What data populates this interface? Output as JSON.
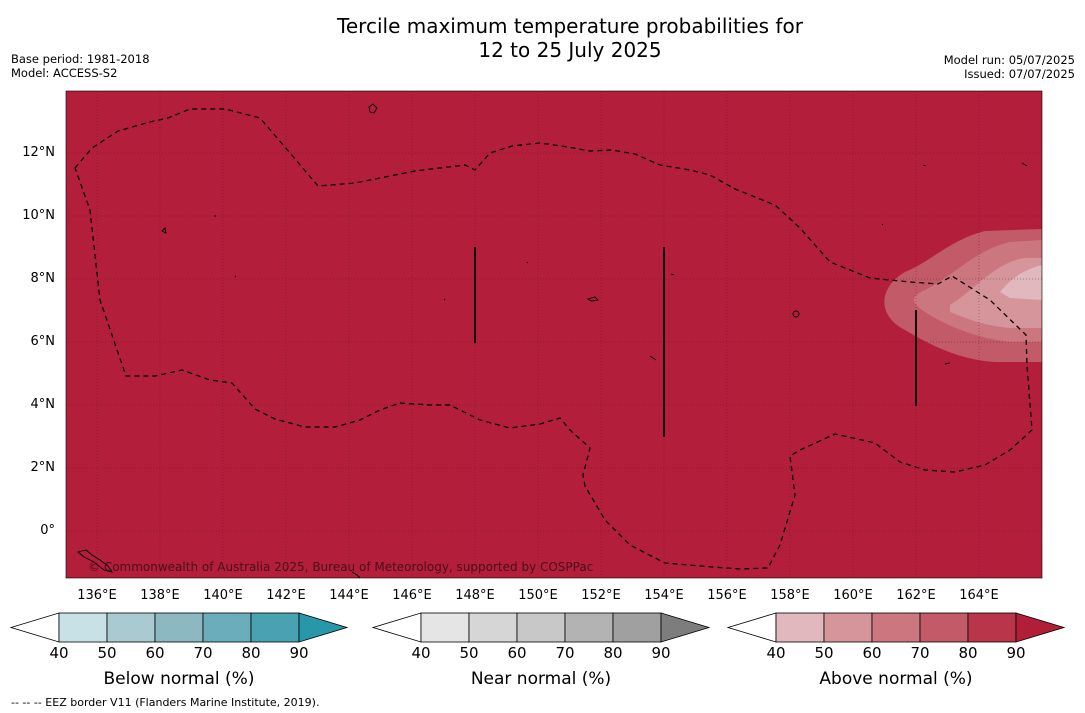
{
  "header": {
    "title_line1": "Tercile maximum temperature probabilities for",
    "title_line2": "12 to 25 July 2025",
    "base_period": "Base period: 1981-2018",
    "model": "Model: ACCESS-S2",
    "model_run": "Model run: 05/07/2025",
    "issued": "Issued: 07/07/2025"
  },
  "map": {
    "copyright": "© Commonwealth of Australia 2025, Bureau of Meteorology, supported by COSPPac",
    "base_color": "#b31f3b",
    "lat_labels": [
      "12°N",
      "10°N",
      "8°N",
      "6°N",
      "4°N",
      "2°N",
      "0°"
    ],
    "lon_labels": [
      "136°E",
      "138°E",
      "140°E",
      "142°E",
      "144°E",
      "146°E",
      "148°E",
      "150°E",
      "152°E",
      "154°E",
      "156°E",
      "158°E",
      "160°E",
      "162°E",
      "164°E"
    ]
  },
  "colorbars": {
    "ticks": [
      "40",
      "50",
      "60",
      "70",
      "80",
      "90"
    ],
    "below": {
      "title": "Below normal (%)",
      "colors": [
        "#ffffff",
        "#c8e1e6",
        "#a9cad0",
        "#8cb8c2",
        "#6cadbb",
        "#48a2b2",
        "#2a96aa"
      ]
    },
    "near": {
      "title": "Near normal (%)",
      "colors": [
        "#ffffff",
        "#e5e5e5",
        "#d6d6d6",
        "#c8c8c8",
        "#b3b3b3",
        "#a0a0a0",
        "#7d7d7d"
      ]
    },
    "above": {
      "title": "Above normal (%)",
      "colors": [
        "#ffffff",
        "#e0b8bd",
        "#d5959b",
        "#cc7780",
        "#c35a68",
        "#b93549",
        "#b01f37"
      ]
    }
  },
  "footer": {
    "legend": "--  --  -- EEZ border V11 (Flanders Marine Institute, 2019)."
  }
}
